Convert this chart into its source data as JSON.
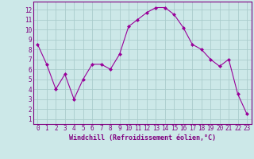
{
  "x": [
    0,
    1,
    2,
    3,
    4,
    5,
    6,
    7,
    8,
    9,
    10,
    11,
    12,
    13,
    14,
    15,
    16,
    17,
    18,
    19,
    20,
    21,
    22,
    23
  ],
  "y": [
    8.5,
    6.5,
    4.0,
    5.5,
    3.0,
    5.0,
    6.5,
    6.5,
    6.0,
    7.5,
    10.3,
    11.0,
    11.7,
    12.2,
    12.2,
    11.5,
    10.2,
    8.5,
    8.0,
    7.0,
    6.3,
    7.0,
    3.5,
    1.5
  ],
  "line_color": "#990099",
  "marker": "D",
  "marker_size": 2,
  "bg_color": "#cce8e8",
  "grid_color": "#aacccc",
  "xlabel": "Windchill (Refroidissement éolien,°C)",
  "xlabel_color": "#800080",
  "tick_color": "#800080",
  "ylim": [
    0.5,
    12.8
  ],
  "xlim": [
    -0.5,
    23.5
  ],
  "yticks": [
    1,
    2,
    3,
    4,
    5,
    6,
    7,
    8,
    9,
    10,
    11,
    12
  ],
  "xticks": [
    0,
    1,
    2,
    3,
    4,
    5,
    6,
    7,
    8,
    9,
    10,
    11,
    12,
    13,
    14,
    15,
    16,
    17,
    18,
    19,
    20,
    21,
    22,
    23
  ],
  "spine_color": "#800080",
  "tick_fontsize": 5.5,
  "xlabel_fontsize": 6.0
}
